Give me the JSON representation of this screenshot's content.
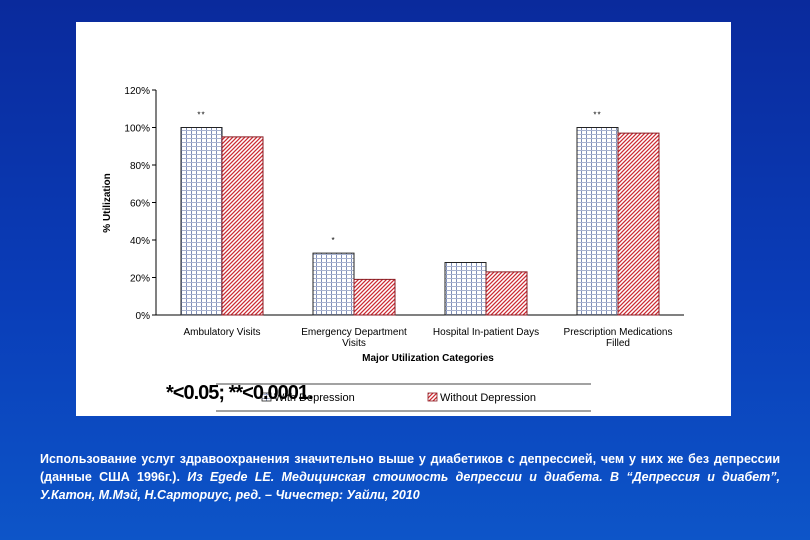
{
  "chart_data": {
    "type": "bar",
    "ylabel": "% Utilization",
    "xlabel": "Major Utilization Categories",
    "ylim": [
      0,
      120
    ],
    "yticks": [
      "0%",
      "20%",
      "40%",
      "60%",
      "80%",
      "100%",
      "120%"
    ],
    "categories": [
      [
        "Ambulatory Visits"
      ],
      [
        "Emergency Department",
        "Visits"
      ],
      [
        "Hospital In-patient Days"
      ],
      [
        "Prescription Medications",
        "Filled"
      ]
    ],
    "series": [
      {
        "name": "With Depression",
        "values": [
          100,
          33,
          28,
          100
        ],
        "color": "#c0c8e0"
      },
      {
        "name": "Without Depression",
        "values": [
          95,
          19,
          23,
          97
        ],
        "color": "#d8444c"
      }
    ],
    "annotations": [
      "**",
      "*",
      "",
      "**"
    ],
    "legend": [
      "With Depression",
      "Without Depression"
    ]
  },
  "significance_note": "*<0.05; **<0.0001.",
  "caption": {
    "line_bold": "Использование услуг здравоохранения значительно выше у диабетиков с депрессией, чем у них же без депрессии (данные США 1996г.). ",
    "line_italic": "Из Egede LE. Медицинская стоимость депрессии и диабета. В “Депрессия и диабет”, У.Катон, М.Мэй, Н.Сарториус, ред. – Чичестер: Уайли, 2010"
  }
}
